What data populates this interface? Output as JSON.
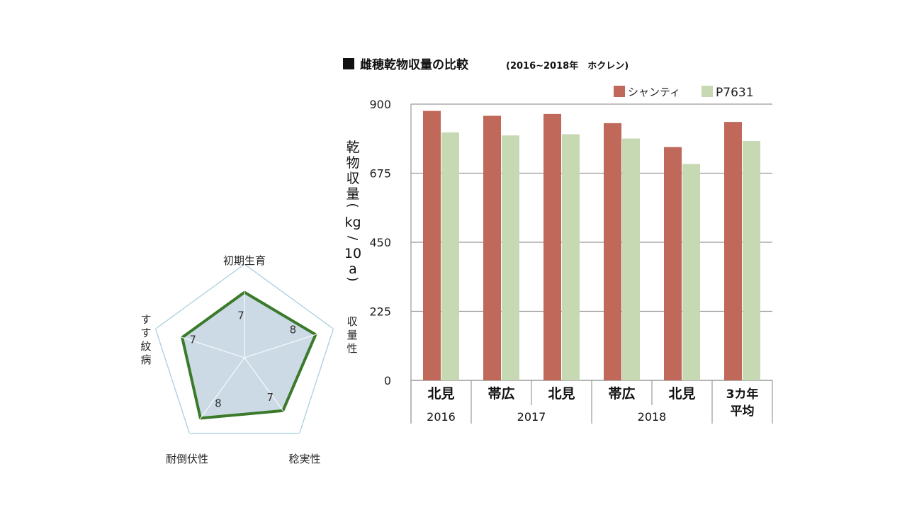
{
  "bar_chart": {
    "title": "雌穂乾物収量の比較",
    "title_note": "(2016~2018年　ホクレン)",
    "ylabel_top": "乾物収量",
    "ylabel_unit": "kg/10a",
    "ytick_labels": [
      "0",
      "225",
      "450",
      "675",
      "900"
    ],
    "groups": [
      {
        "label": "北見",
        "period": "2016"
      },
      {
        "label": "帯広",
        "period": "2017"
      },
      {
        "label": "北見",
        "period": "2017"
      },
      {
        "label": "帯広",
        "period": "2018"
      },
      {
        "label": "北見",
        "period": "2018"
      },
      {
        "label": "3カ年\n平均",
        "period": ""
      }
    ],
    "period_labels": [
      {
        "text": "2016",
        "from": 0,
        "to": 0
      },
      {
        "text": "2017",
        "from": 1,
        "to": 2
      },
      {
        "text": "2018",
        "from": 3,
        "to": 4
      }
    ]
  },
  "radar": {
    "axes": [
      "初期生育",
      "収量性",
      "稔実性",
      "耐倒伏性",
      "すす紋病"
    ],
    "labels_vertical": [
      false,
      true,
      false,
      false,
      true
    ]
  },
  "colors": {
    "series_1": "#c0685a",
    "series_2": "#c6d9b3",
    "radar_fill": "#c3d4e2",
    "radar_line": "#3a7a2a",
    "grid": "#9a9a9a",
    "radar_grid": "#a9cfe0"
  },
  "chart_data": [
    {
      "type": "bar",
      "title": "雌穂乾物収量の比較",
      "ylabel": "乾物収量(kg/10a)",
      "categories": [
        "北見 2016",
        "帯広 2017",
        "北見 2017",
        "帯広 2018",
        "北見 2018",
        "3カ年平均"
      ],
      "ylim": [
        0,
        900
      ],
      "grid": true,
      "legend": "top-right",
      "series": [
        {
          "name": "シャンティ",
          "values": [
            878,
            862,
            868,
            838,
            760,
            842
          ]
        },
        {
          "name": "P7631",
          "values": [
            808,
            798,
            802,
            788,
            705,
            780
          ]
        }
      ]
    },
    {
      "type": "radar",
      "categories": [
        "初期生育",
        "収量性",
        "稔実性",
        "耐倒伏性",
        "すす紋病"
      ],
      "range": [
        0,
        10
      ],
      "series": [
        {
          "values": [
            7,
            8,
            7,
            8,
            7
          ]
        }
      ]
    }
  ]
}
